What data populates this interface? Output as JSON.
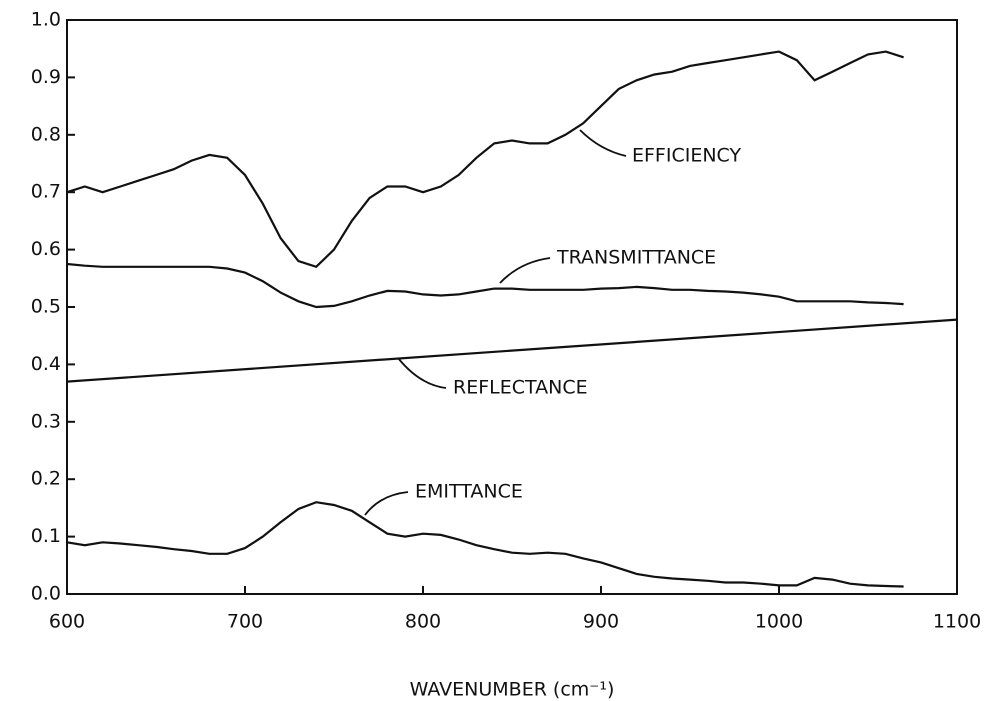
{
  "chart_data": {
    "type": "line",
    "x_label": "WAVENUMBER (cm⁻¹)",
    "x": [
      600,
      610,
      620,
      630,
      640,
      650,
      660,
      670,
      680,
      690,
      700,
      710,
      720,
      730,
      740,
      750,
      760,
      770,
      780,
      790,
      800,
      810,
      820,
      830,
      840,
      850,
      860,
      870,
      880,
      890,
      900,
      910,
      920,
      930,
      940,
      950,
      960,
      970,
      980,
      990,
      1000,
      1010,
      1020,
      1030,
      1040,
      1050,
      1060,
      1070
    ],
    "series": [
      {
        "name": "EFFICIENCY",
        "color": "#111111",
        "values": [
          0.7,
          0.71,
          0.7,
          0.71,
          0.72,
          0.73,
          0.74,
          0.755,
          0.765,
          0.76,
          0.73,
          0.68,
          0.62,
          0.58,
          0.57,
          0.6,
          0.65,
          0.69,
          0.71,
          0.71,
          0.7,
          0.71,
          0.73,
          0.76,
          0.785,
          0.79,
          0.785,
          0.785,
          0.8,
          0.82,
          0.85,
          0.88,
          0.895,
          0.905,
          0.91,
          0.92,
          0.925,
          0.93,
          0.935,
          0.94,
          0.945,
          0.93,
          0.895,
          0.91,
          0.925,
          0.94,
          0.945,
          0.935
        ]
      },
      {
        "name": "TRANSMITTANCE",
        "color": "#111111",
        "values": [
          0.575,
          0.572,
          0.57,
          0.57,
          0.57,
          0.57,
          0.57,
          0.57,
          0.57,
          0.567,
          0.56,
          0.545,
          0.525,
          0.51,
          0.5,
          0.502,
          0.51,
          0.52,
          0.528,
          0.527,
          0.522,
          0.52,
          0.522,
          0.527,
          0.532,
          0.532,
          0.53,
          0.53,
          0.53,
          0.53,
          0.532,
          0.533,
          0.535,
          0.533,
          0.53,
          0.53,
          0.528,
          0.527,
          0.525,
          0.522,
          0.518,
          0.51,
          0.51,
          0.51,
          0.51,
          0.508,
          0.507,
          0.505
        ]
      },
      {
        "name": "REFLECTANCE",
        "color": "#111111",
        "x": [
          600,
          1100
        ],
        "values": [
          0.37,
          0.478
        ]
      },
      {
        "name": "EMITTANCE",
        "color": "#111111",
        "values": [
          0.09,
          0.085,
          0.09,
          0.088,
          0.085,
          0.082,
          0.078,
          0.075,
          0.07,
          0.07,
          0.08,
          0.1,
          0.125,
          0.148,
          0.16,
          0.155,
          0.145,
          0.125,
          0.105,
          0.1,
          0.105,
          0.103,
          0.095,
          0.085,
          0.078,
          0.072,
          0.07,
          0.072,
          0.07,
          0.062,
          0.055,
          0.045,
          0.035,
          0.03,
          0.027,
          0.025,
          0.023,
          0.02,
          0.02,
          0.018,
          0.015,
          0.015,
          0.028,
          0.025,
          0.018,
          0.015,
          0.014,
          0.013
        ]
      }
    ],
    "xlim": [
      600,
      1100
    ],
    "xticks": [
      600,
      700,
      800,
      900,
      1000,
      1100
    ],
    "ylim": [
      0,
      1
    ],
    "yticks": [
      {
        "value": 0,
        "label": "0.0"
      },
      0.1,
      0.2,
      0.3,
      0.4,
      0.5,
      0.6,
      0.7,
      0.8,
      0.9,
      {
        "value": 1,
        "label": "1.0"
      }
    ]
  }
}
